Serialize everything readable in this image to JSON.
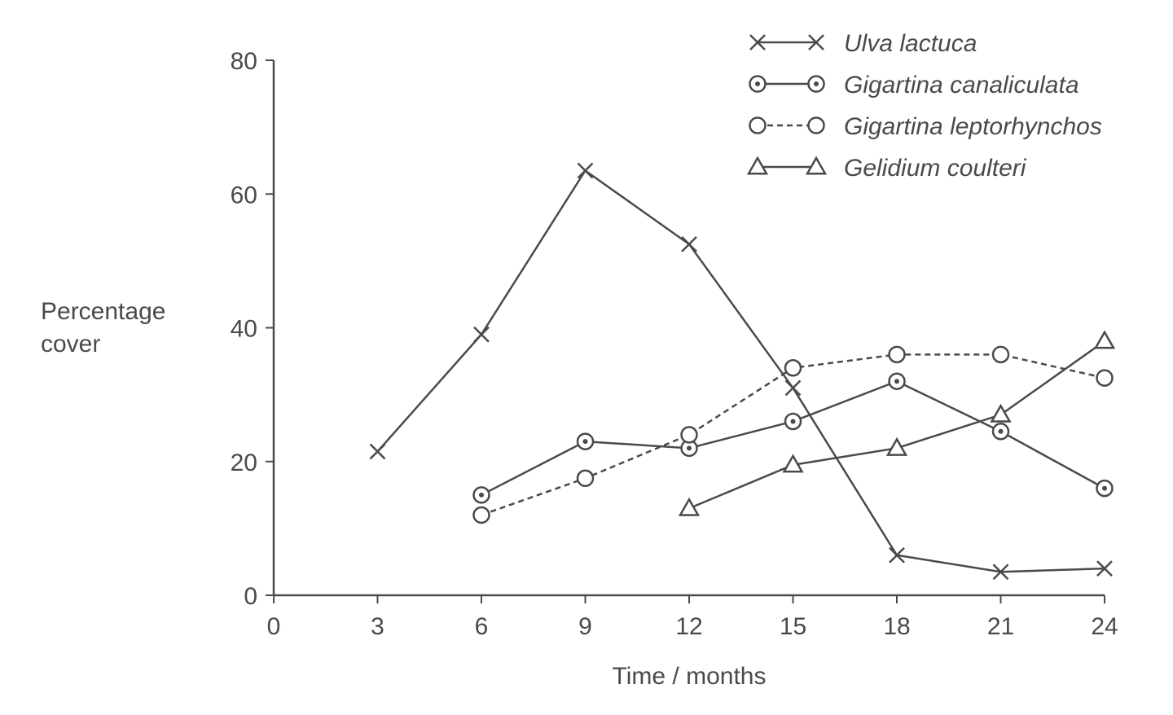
{
  "chart_data": {
    "type": "line",
    "title": "",
    "xlabel": "Time / months",
    "ylabel": [
      "Percentage",
      "cover"
    ],
    "xlim": [
      0,
      24
    ],
    "ylim": [
      0,
      80
    ],
    "x_ticks": [
      0,
      3,
      6,
      9,
      12,
      15,
      18,
      21,
      24
    ],
    "y_ticks": [
      0,
      20,
      40,
      60,
      80
    ],
    "grid": false,
    "legend_position": "top-right",
    "series": [
      {
        "name": "Ulva lactuca",
        "marker": "cross",
        "line_style": "solid",
        "x": [
          3,
          6,
          9,
          12,
          15,
          18,
          21,
          24
        ],
        "y": [
          21.5,
          39,
          63.5,
          52.5,
          31,
          6,
          3.5,
          4
        ]
      },
      {
        "name": "Gigartina canaliculata",
        "marker": "dotted-circle",
        "line_style": "solid",
        "x": [
          6,
          9,
          12,
          15,
          18,
          21,
          24
        ],
        "y": [
          15,
          23,
          22,
          26,
          32,
          24.5,
          16
        ]
      },
      {
        "name": "Gigartina leptorhynchos",
        "marker": "open-circle",
        "line_style": "dashed",
        "x": [
          6,
          9,
          12,
          15,
          18,
          21,
          24
        ],
        "y": [
          12,
          17.5,
          24,
          34,
          36,
          36,
          32.5
        ]
      },
      {
        "name": "Gelidium coulteri",
        "marker": "triangle",
        "line_style": "solid",
        "x": [
          12,
          15,
          18,
          21,
          24
        ],
        "y": [
          13,
          19.5,
          22,
          27,
          38
        ]
      }
    ]
  }
}
